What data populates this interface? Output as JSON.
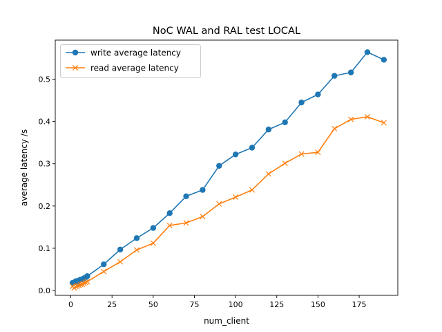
{
  "chart_data": {
    "type": "line",
    "title": "NoC WAL and RAL test LOCAL",
    "xlabel": "num_client",
    "ylabel": "average latency /s",
    "xlim": [
      -9.45,
      198.45
    ],
    "ylim": [
      -0.0114,
      0.5925
    ],
    "xticks": [
      0,
      25,
      50,
      75,
      100,
      125,
      150,
      175
    ],
    "yticks": [
      0.0,
      0.1,
      0.2,
      0.3,
      0.4,
      0.5
    ],
    "xtick_labels": [
      "0",
      "25",
      "50",
      "75",
      "100",
      "125",
      "150",
      "175"
    ],
    "ytick_labels": [
      "0.0",
      "0.1",
      "0.2",
      "0.3",
      "0.4",
      "0.5"
    ],
    "grid": false,
    "legend_position": "upper-left",
    "x": [
      1,
      2,
      3,
      4,
      5,
      6,
      7,
      8,
      9,
      10,
      20,
      30,
      40,
      50,
      60,
      70,
      80,
      90,
      100,
      110,
      120,
      130,
      140,
      150,
      160,
      170,
      180,
      190
    ],
    "series": [
      {
        "name": "write average latency",
        "color": "#1f77b4",
        "marker": "circle",
        "values": [
          0.018,
          0.019,
          0.022,
          0.021,
          0.024,
          0.026,
          0.027,
          0.029,
          0.031,
          0.034,
          0.062,
          0.097,
          0.124,
          0.148,
          0.183,
          0.223,
          0.238,
          0.295,
          0.322,
          0.338,
          0.381,
          0.398,
          0.445,
          0.464,
          0.508,
          0.516,
          0.564,
          0.546
        ]
      },
      {
        "name": "read average latency",
        "color": "#ff7f0e",
        "marker": "x",
        "values": [
          0.01,
          0.006,
          0.009,
          0.011,
          0.012,
          0.014,
          0.015,
          0.017,
          0.019,
          0.021,
          0.045,
          0.068,
          0.096,
          0.112,
          0.154,
          0.16,
          0.175,
          0.205,
          0.221,
          0.238,
          0.276,
          0.301,
          0.323,
          0.327,
          0.383,
          0.405,
          0.411,
          0.397
        ]
      }
    ]
  }
}
